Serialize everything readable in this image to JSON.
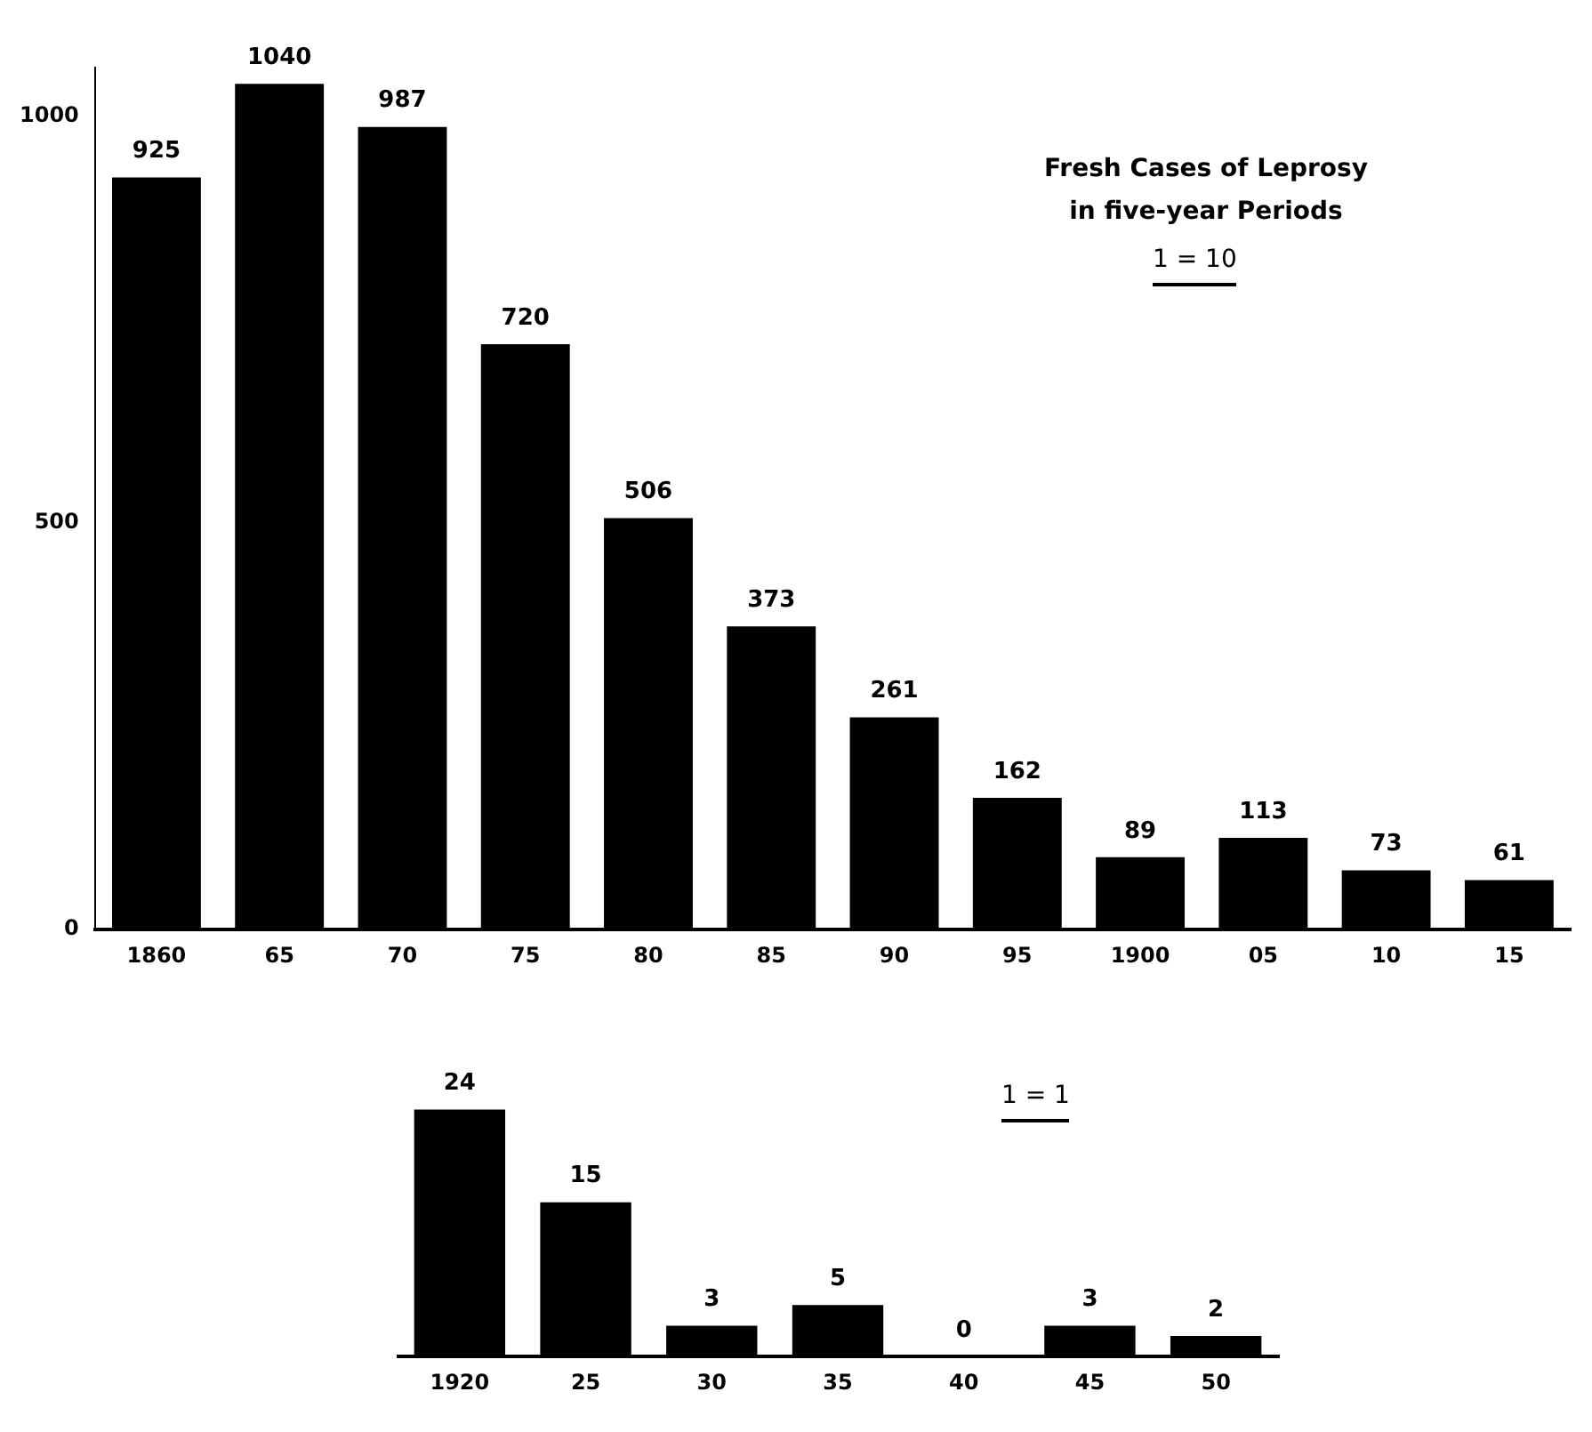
{
  "chart_data": [
    {
      "type": "bar",
      "title": "Fresh Cases of Leprosy in five-year Periods",
      "annotations": [
        "1 = 10"
      ],
      "categories": [
        "1860",
        "65",
        "70",
        "75",
        "80",
        "85",
        "90",
        "95",
        "1900",
        "05",
        "10",
        "15"
      ],
      "values": [
        925,
        1040,
        987,
        720,
        506,
        373,
        261,
        162,
        89,
        113,
        73,
        61
      ],
      "color": "#000000",
      "ylim": [
        0,
        1060
      ],
      "yticks": [
        0,
        500,
        1000
      ],
      "grid": false,
      "data_labels": true
    },
    {
      "type": "bar",
      "annotations": [
        "1 = 1"
      ],
      "categories": [
        "1920",
        "25",
        "30",
        "35",
        "40",
        "45",
        "50"
      ],
      "values": [
        24,
        15,
        3,
        5,
        0,
        3,
        2
      ],
      "color": "#000000",
      "grid": false,
      "data_labels": true,
      "tick_labels": "x"
    }
  ]
}
